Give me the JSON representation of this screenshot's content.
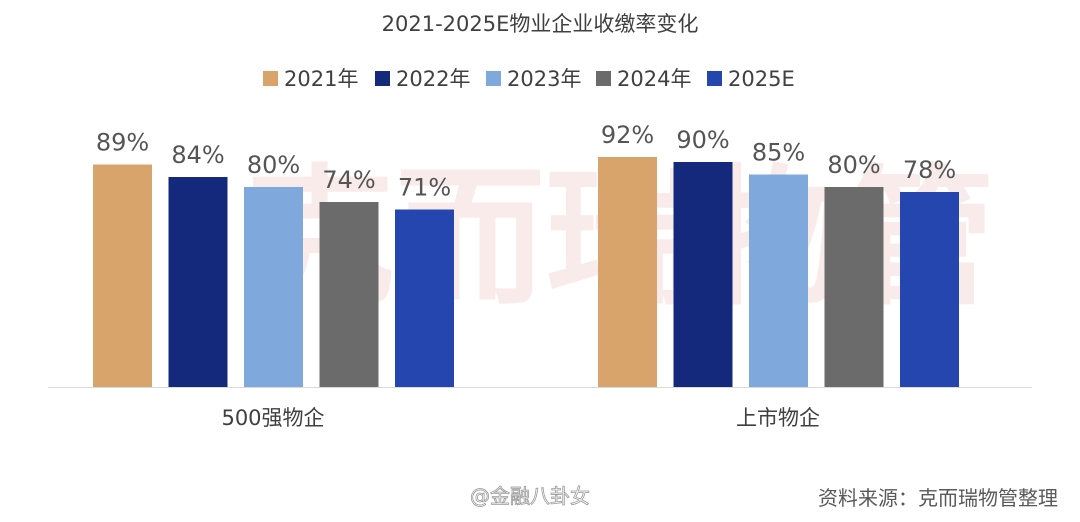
{
  "chart_data": {
    "type": "bar",
    "title": "2021-2025E物业企业收缴率变化",
    "categories": [
      "500强物企",
      "上市物企"
    ],
    "series": [
      {
        "name": "2021年",
        "color": "#D9A46C",
        "values": [
          89,
          92
        ],
        "labels": [
          "89%",
          "92%"
        ]
      },
      {
        "name": "2022年",
        "color": "#15297C",
        "values": [
          84,
          90
        ],
        "labels": [
          "84%",
          "90%"
        ]
      },
      {
        "name": "2023年",
        "color": "#7FA8DD",
        "values": [
          80,
          85
        ],
        "labels": [
          "80%",
          "85%"
        ]
      },
      {
        "name": "2024年",
        "color": "#6B6B6B",
        "values": [
          74,
          80
        ],
        "labels": [
          "74%",
          "80%"
        ]
      },
      {
        "name": "2025E",
        "color": "#2446AE",
        "values": [
          71,
          78
        ],
        "labels": [
          "71%",
          "78%"
        ]
      }
    ],
    "xlabel": "",
    "ylabel": "",
    "ylim": [
      0,
      100
    ],
    "grid": false,
    "legend": "top"
  },
  "watermark": "克而瑞物管",
  "source": "资料来源：克而瑞物管整理",
  "weibo_mark": "@金融八卦女"
}
